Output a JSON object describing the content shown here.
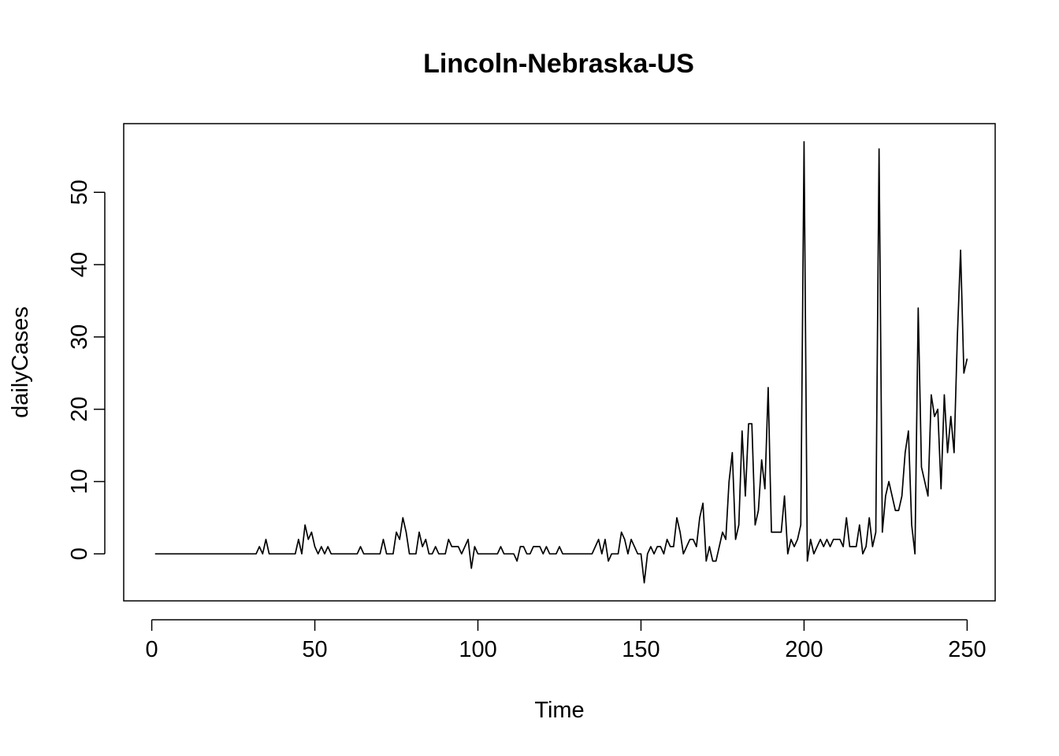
{
  "chart_data": {
    "type": "line",
    "title": "Lincoln-Nebraska-US",
    "xlabel": "Time",
    "ylabel": "dailyCases",
    "xlim": [
      -8.6,
      258.6
    ],
    "ylim": [
      -6.5,
      59.5
    ],
    "xticks": [
      0,
      50,
      100,
      150,
      200,
      250
    ],
    "yticks": [
      0,
      10,
      20,
      30,
      40,
      50
    ],
    "grid": false,
    "series": [
      {
        "color": "#000000",
        "x_start": 1,
        "values": [
          0,
          0,
          0,
          0,
          0,
          0,
          0,
          0,
          0,
          0,
          0,
          0,
          0,
          0,
          0,
          0,
          0,
          0,
          0,
          0,
          0,
          0,
          0,
          0,
          0,
          0,
          0,
          0,
          0,
          0,
          0,
          0,
          1,
          0,
          2,
          0,
          0,
          0,
          0,
          0,
          0,
          0,
          0,
          0,
          2,
          0,
          4,
          2,
          3,
          1,
          0,
          1,
          0,
          1,
          0,
          0,
          0,
          0,
          0,
          0,
          0,
          0,
          0,
          1,
          0,
          0,
          0,
          0,
          0,
          0,
          2,
          0,
          0,
          0,
          3,
          2,
          5,
          3,
          0,
          0,
          0,
          3,
          1,
          2,
          0,
          0,
          1,
          0,
          0,
          0,
          2,
          1,
          1,
          1,
          0,
          1,
          2,
          -2,
          1,
          0,
          0,
          0,
          0,
          0,
          0,
          0,
          1,
          0,
          0,
          0,
          0,
          -1,
          1,
          1,
          0,
          0,
          1,
          1,
          1,
          0,
          1,
          0,
          0,
          0,
          1,
          0,
          0,
          0,
          0,
          0,
          0,
          0,
          0,
          0,
          0,
          1,
          2,
          0,
          2,
          -1,
          0,
          0,
          0,
          3,
          2,
          0,
          2,
          1,
          0,
          0,
          -4,
          0,
          1,
          0,
          1,
          1,
          0,
          2,
          1,
          1,
          5,
          3,
          0,
          1,
          2,
          2,
          1,
          5,
          7,
          -1,
          1,
          -1,
          -1,
          1,
          3,
          2,
          10,
          14,
          2,
          4,
          17,
          8,
          18,
          18,
          4,
          6,
          13,
          9,
          23,
          3,
          3,
          3,
          3,
          8,
          0,
          2,
          1,
          2,
          4,
          57,
          -1,
          2,
          0,
          1,
          2,
          1,
          2,
          1,
          2,
          2,
          2,
          1,
          5,
          1,
          1,
          1,
          4,
          0,
          1,
          5,
          1,
          3,
          56,
          3,
          8,
          10,
          8,
          6,
          6,
          8,
          14,
          17,
          4,
          0,
          34,
          12,
          10,
          8,
          22,
          19,
          20,
          9,
          22,
          14,
          19,
          14,
          30,
          42,
          25,
          27
        ]
      }
    ]
  }
}
